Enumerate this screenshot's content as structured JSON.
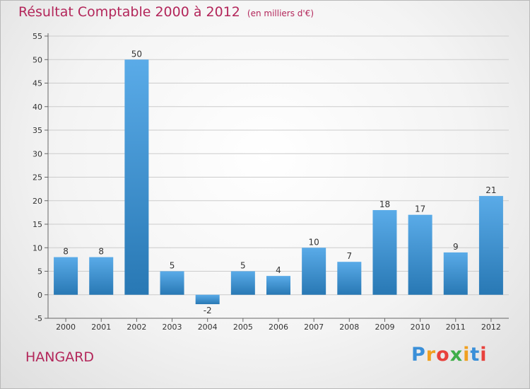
{
  "header": {
    "title": "Résultat Comptable 2000 à 2012",
    "subtitle": "(en milliers d'€)"
  },
  "commune": "HANGARD",
  "logo": {
    "text": "Proxiti",
    "letters": [
      "P",
      "r",
      "o",
      "x",
      "i",
      "t",
      "i"
    ],
    "colors": [
      "#3a8fd8",
      "#f0a020",
      "#e8413c",
      "#3fae49",
      "#f0a020",
      "#3a8fd8",
      "#e8413c"
    ]
  },
  "colors": {
    "title": "#b3265a",
    "bar_light": "#5aabe8",
    "bar_dark": "#2878b4",
    "grid": "#cccccc"
  },
  "chart_data": {
    "type": "bar",
    "title": "Résultat Comptable 2000 à 2012",
    "subtitle": "(en milliers d'€)",
    "xlabel": "",
    "ylabel": "",
    "categories": [
      "2000",
      "2001",
      "2002",
      "2003",
      "2004",
      "2005",
      "2006",
      "2007",
      "2008",
      "2009",
      "2010",
      "2011",
      "2012"
    ],
    "values": [
      8,
      8,
      50,
      5,
      -2,
      5,
      4,
      10,
      7,
      18,
      17,
      9,
      21
    ],
    "ylim": [
      -5,
      55
    ],
    "yticks": [
      -5,
      0,
      5,
      10,
      15,
      20,
      25,
      30,
      35,
      40,
      45,
      50,
      55
    ],
    "grid": true,
    "legend": "none"
  }
}
